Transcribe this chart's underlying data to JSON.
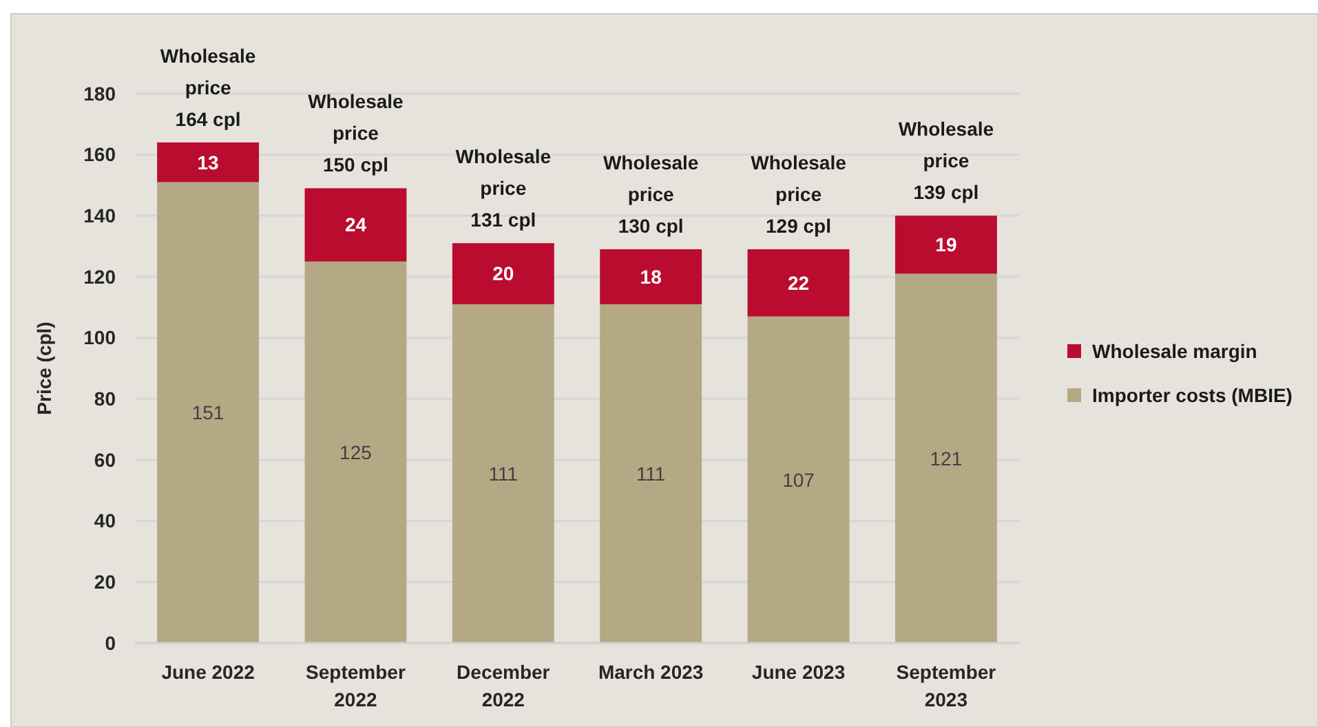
{
  "chart_data": {
    "type": "bar",
    "stacked": true,
    "categories": [
      "June 2022",
      "September 2022",
      "December 2022",
      "March 2023",
      "June 2023",
      "September 2023"
    ],
    "ylabel": "Price (cpl)",
    "ylim": [
      0,
      180
    ],
    "yticks": [
      0,
      20,
      40,
      60,
      80,
      100,
      120,
      140,
      160,
      180
    ],
    "grid": "y",
    "legend": "right",
    "data_labels": true,
    "series": [
      {
        "name": "Importer costs (MBIE)",
        "color": "#b5a985",
        "values": [
          151,
          125,
          111,
          111,
          107,
          121
        ]
      },
      {
        "name": "Wholesale margin",
        "color": "#ba0c2f",
        "values": [
          13,
          24,
          20,
          18,
          22,
          19
        ]
      }
    ],
    "totals": [
      "Wholesale price 164 cpl",
      "Wholesale price 150 cpl",
      "Wholesale price 131 cpl",
      "Wholesale price 130 cpl",
      "Wholesale price 129 cpl",
      "Wholesale price 139 cpl"
    ]
  }
}
